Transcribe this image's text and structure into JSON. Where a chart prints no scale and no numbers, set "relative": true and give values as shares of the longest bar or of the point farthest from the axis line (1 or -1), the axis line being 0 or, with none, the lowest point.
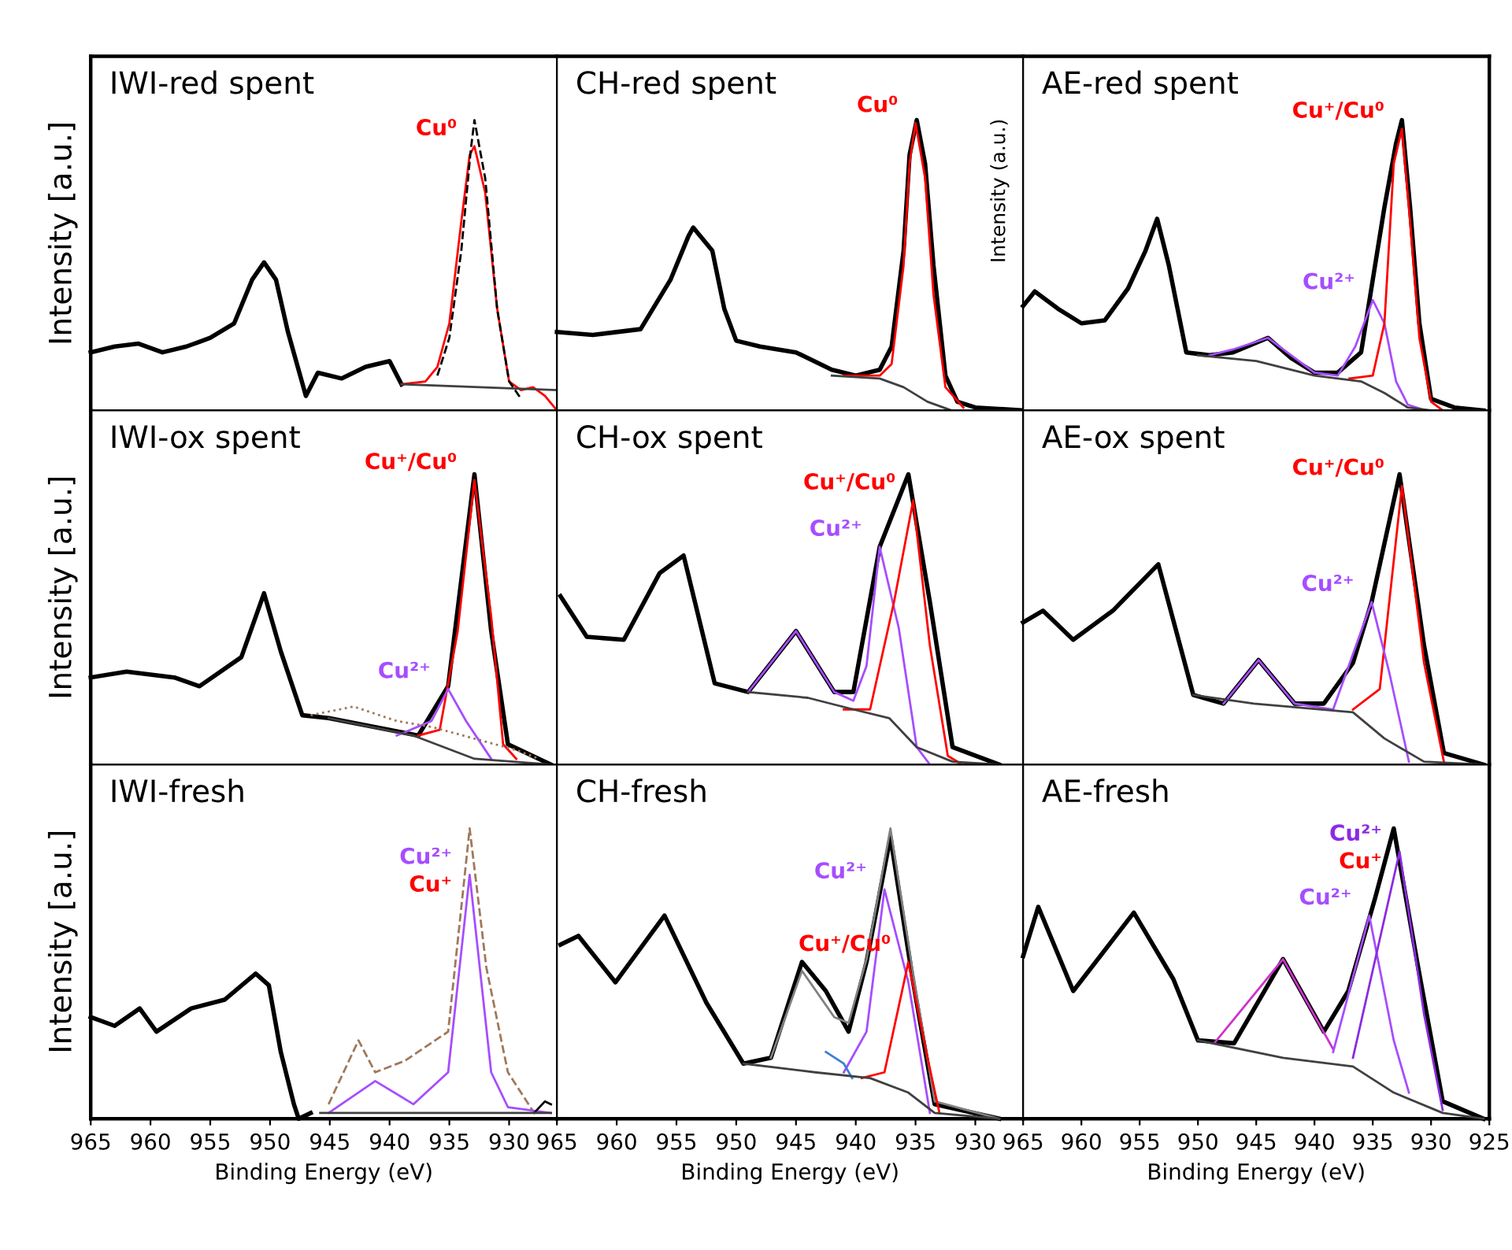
{
  "chart_data": [
    {
      "type": "line",
      "title": "IWI-red spent",
      "ylabel": "Intensity [a.u.]",
      "relative": true,
      "xlim": [
        965,
        926
      ],
      "xticks": [
        965,
        960,
        955,
        950,
        945,
        940,
        935,
        930
      ],
      "tick_labels": false,
      "series": [
        {
          "color": "#000000",
          "x": [
            965,
            963,
            961,
            959,
            957,
            955,
            953,
            951.5,
            950.5,
            949.5,
            948.5,
            947,
            946,
            944,
            942,
            940,
            939
          ],
          "values": [
            0.2,
            0.22,
            0.23,
            0.2,
            0.22,
            0.25,
            0.3,
            0.45,
            0.51,
            0.45,
            0.27,
            0.05,
            0.13,
            0.11,
            0.15,
            0.17,
            0.09
          ]
        },
        {
          "name": "Cu⁰",
          "color": "#ff0000",
          "x": [
            939,
            937,
            936,
            935,
            934,
            933.3,
            932.9,
            932,
            931,
            930,
            929,
            928,
            927,
            926
          ],
          "values": [
            0.09,
            0.1,
            0.15,
            0.3,
            0.65,
            0.88,
            0.91,
            0.75,
            0.35,
            0.1,
            0.07,
            0.08,
            0.05,
            0
          ]
        },
        {
          "color": "#000000",
          "line_style": "dashed",
          "x": [
            936,
            935,
            934,
            933.2,
            932.9,
            932,
            931,
            930,
            929
          ],
          "values": [
            0.12,
            0.25,
            0.55,
            0.9,
            1.0,
            0.8,
            0.35,
            0.1,
            0.04
          ]
        },
        {
          "color": "#404040",
          "x": [
            939,
            926
          ],
          "values": [
            0.09,
            0.07
          ]
        }
      ]
    },
    {
      "type": "line",
      "title": "CH-red spent",
      "relative": true,
      "xlim": [
        965,
        926
      ],
      "xticks": [
        965,
        960,
        955,
        950,
        945,
        940,
        935,
        930
      ],
      "tick_labels": false,
      "series": [
        {
          "color": "#000000",
          "x": [
            965,
            962,
            958,
            955.5,
            954,
            953.6,
            952,
            951,
            950,
            948,
            945,
            942,
            940,
            938,
            937,
            936,
            935.5,
            934.9,
            934.2,
            933.5,
            932.5,
            931.5,
            930,
            926
          ],
          "values": [
            0.27,
            0.26,
            0.28,
            0.45,
            0.6,
            0.63,
            0.55,
            0.35,
            0.24,
            0.22,
            0.2,
            0.14,
            0.12,
            0.14,
            0.22,
            0.55,
            0.88,
            1.0,
            0.85,
            0.5,
            0.12,
            0.03,
            0.01,
            0
          ]
        },
        {
          "name": "Cu⁰",
          "color": "#ff0000",
          "x": [
            941,
            938,
            937,
            936,
            935.5,
            935,
            934.2,
            933.5,
            932.5,
            931
          ],
          "values": [
            0.12,
            0.12,
            0.16,
            0.5,
            0.85,
            0.99,
            0.8,
            0.4,
            0.08,
            0.01
          ]
        },
        {
          "color": "#404040",
          "x": [
            942,
            938,
            936,
            934,
            932,
            926
          ],
          "values": [
            0.12,
            0.11,
            0.08,
            0.03,
            0,
            0
          ]
        }
      ]
    },
    {
      "type": "line",
      "title": "AE-red spent",
      "ylabel": "Intensity (a.u.)",
      "relative": true,
      "xlim": [
        965,
        925
      ],
      "xticks": [
        965,
        960,
        955,
        950,
        945,
        940,
        935,
        930,
        925
      ],
      "tick_labels": false,
      "series": [
        {
          "color": "#000000",
          "x": [
            965,
            964,
            962,
            960,
            958,
            956,
            954.5,
            953.5,
            952.5,
            951,
            949,
            947,
            944,
            942,
            940,
            938,
            936,
            935,
            934,
            933,
            932.5,
            931.8,
            931,
            930,
            928,
            925.5
          ],
          "values": [
            0.36,
            0.41,
            0.35,
            0.3,
            0.31,
            0.42,
            0.55,
            0.66,
            0.5,
            0.2,
            0.19,
            0.2,
            0.25,
            0.18,
            0.13,
            0.13,
            0.2,
            0.45,
            0.7,
            0.92,
            1.0,
            0.7,
            0.3,
            0.04,
            0.01,
            0
          ]
        },
        {
          "name": "Cu²⁺",
          "color": "#a64dff",
          "x": [
            949,
            947,
            944,
            942,
            940,
            938,
            936.5,
            935,
            934,
            933,
            932,
            930.5
          ],
          "values": [
            0.19,
            0.21,
            0.25,
            0.19,
            0.13,
            0.12,
            0.22,
            0.38,
            0.3,
            0.1,
            0.02,
            0
          ]
        },
        {
          "name": "Cu⁺/Cu⁰",
          "color": "#ff0000",
          "x": [
            937,
            935,
            934,
            933.2,
            932.5,
            931.8,
            931,
            930,
            929
          ],
          "values": [
            0.11,
            0.12,
            0.3,
            0.85,
            0.97,
            0.65,
            0.25,
            0.03,
            0
          ]
        },
        {
          "color": "#404040",
          "x": [
            950,
            945,
            940,
            936,
            934,
            932,
            930,
            925.5
          ],
          "values": [
            0.19,
            0.17,
            0.12,
            0.1,
            0.06,
            0.01,
            0,
            0
          ]
        }
      ]
    },
    {
      "type": "line",
      "title": "IWI-ox spent",
      "ylabel": "Intensity [a.u.]",
      "relative": true,
      "xlim": [
        965,
        926
      ],
      "xticks": [
        965,
        960,
        955,
        950,
        945,
        940,
        935,
        930
      ],
      "tick_labels": false,
      "series": [
        {
          "color": "#000000",
          "x": [
            965,
            962,
            958,
            955.9,
            952.4,
            950.5,
            949.1,
            947.3,
            945.1,
            940.1,
            937.6,
            935.1,
            932.9,
            931.5,
            930.1,
            926.5
          ],
          "values": [
            0.3,
            0.32,
            0.3,
            0.27,
            0.37,
            0.59,
            0.39,
            0.17,
            0.16,
            0.12,
            0.1,
            0.27,
            1.0,
            0.46,
            0.07,
            0
          ]
        },
        {
          "name": "Cu⁺/Cu⁰",
          "color": "#ff0000",
          "x": [
            937.6,
            935.8,
            934.3,
            932.9,
            931.5,
            930.5,
            929.4
          ],
          "values": [
            0.1,
            0.12,
            0.46,
            0.98,
            0.51,
            0.07,
            0.02
          ]
        },
        {
          "name": "Cu²⁺",
          "color": "#a64dff",
          "x": [
            939.4,
            936.5,
            935.1,
            933.6,
            931.5
          ],
          "values": [
            0.1,
            0.15,
            0.26,
            0.15,
            0.02
          ]
        },
        {
          "color": "#a0785a",
          "line_style": "dotted",
          "x": [
            946.6,
            943,
            939.4,
            936.5,
            929.4,
            927.5
          ],
          "values": [
            0.17,
            0.2,
            0.15,
            0.13,
            0.05,
            0.02
          ]
        },
        {
          "color": "#404040",
          "x": [
            945.1,
            938,
            932.9,
            926.5
          ],
          "values": [
            0.16,
            0.1,
            0.02,
            0
          ]
        }
      ]
    },
    {
      "type": "line",
      "title": "CH-ox spent",
      "relative": true,
      "xlim": [
        965,
        926
      ],
      "xticks": [
        965,
        960,
        955,
        950,
        945,
        940,
        935,
        930
      ],
      "tick_labels": false,
      "series": [
        {
          "color": "#000000",
          "x": [
            964.7,
            962.5,
            959.4,
            956.4,
            954.4,
            951.8,
            949,
            945,
            941.8,
            940.2,
            938,
            935.6,
            933.8,
            931.9,
            928
          ],
          "values": [
            0.58,
            0.44,
            0.43,
            0.66,
            0.72,
            0.28,
            0.25,
            0.46,
            0.25,
            0.25,
            0.75,
            1.0,
            0.56,
            0.06,
            0
          ]
        },
        {
          "name": "Cu²⁺",
          "color": "#a64dff",
          "x": [
            949,
            945,
            941.8,
            940.2,
            939.1,
            938,
            936.4,
            934.9,
            933.8
          ],
          "values": [
            0.25,
            0.46,
            0.25,
            0.22,
            0.34,
            0.75,
            0.47,
            0.06,
            0
          ]
        },
        {
          "name": "Cu⁺/Cu⁰",
          "color": "#ff0000",
          "x": [
            941,
            938.8,
            936.8,
            935.2,
            933.8,
            932.3,
            931.1
          ],
          "values": [
            0.19,
            0.19,
            0.56,
            0.91,
            0.41,
            0.03,
            0
          ]
        },
        {
          "color": "#404040",
          "x": [
            949,
            944,
            940.2,
            937.2,
            934.9,
            931.9,
            928
          ],
          "values": [
            0.25,
            0.23,
            0.19,
            0.16,
            0.06,
            0.01,
            0
          ]
        }
      ]
    },
    {
      "type": "line",
      "title": "AE-ox spent",
      "relative": true,
      "xlim": [
        965,
        925
      ],
      "xticks": [
        965,
        960,
        955,
        950,
        945,
        940,
        935,
        930,
        925
      ],
      "tick_labels": false,
      "series": [
        {
          "color": "#000000",
          "x": [
            965,
            963.3,
            960.7,
            957.3,
            953.4,
            950.4,
            947.8,
            944.8,
            941.7,
            939.2,
            936.7,
            935.1,
            932.7,
            930.6,
            928.9,
            925.5
          ],
          "values": [
            0.49,
            0.53,
            0.43,
            0.53,
            0.69,
            0.24,
            0.21,
            0.36,
            0.21,
            0.21,
            0.35,
            0.56,
            1.0,
            0.41,
            0.04,
            0
          ]
        },
        {
          "name": "Cu⁺/Cu⁰",
          "color": "#ff0000",
          "x": [
            936.7,
            934.4,
            932.5,
            930.6,
            928.9
          ],
          "values": [
            0.19,
            0.26,
            0.96,
            0.35,
            0.01
          ]
        },
        {
          "name": "Cu²⁺",
          "color": "#a64dff",
          "x": [
            947.8,
            944.8,
            941.7,
            938.4,
            935.1,
            933.6,
            931.9
          ],
          "values": [
            0.21,
            0.36,
            0.21,
            0.19,
            0.56,
            0.32,
            0.01
          ]
        },
        {
          "color": "#404040",
          "x": [
            950.4,
            945.2,
            936.7,
            934,
            930.6,
            925.5
          ],
          "values": [
            0.24,
            0.21,
            0.18,
            0.09,
            0.01,
            0
          ]
        }
      ]
    },
    {
      "type": "line",
      "title": "IWI-fresh",
      "xlabel": "Binding Energy (eV)",
      "ylabel": "Intensity [a.u.]",
      "relative": true,
      "xlim": [
        965,
        926
      ],
      "xticks": [
        965,
        960,
        955,
        950,
        945,
        940,
        935,
        930
      ],
      "tick_labels": "x",
      "annotations": [
        {
          "text": "Cu⁺",
          "x": 933.3,
          "y": 0.84
        }
      ],
      "series": [
        {
          "color": "#000000",
          "x": [
            965,
            963,
            960.9,
            959.5,
            956.6,
            953.8,
            951.2,
            950.1,
            949.1,
            948,
            947.6,
            946.6
          ],
          "values": [
            0.35,
            0.32,
            0.38,
            0.3,
            0.38,
            0.41,
            0.5,
            0.46,
            0.23,
            0.05,
            0,
            0.02
          ]
        },
        {
          "color": "#a0785a",
          "line_style": "dashed",
          "x": [
            945.1,
            942.6,
            941.2,
            938.7,
            935.1,
            933.3,
            931.9,
            930.1,
            927.9
          ],
          "values": [
            0.05,
            0.27,
            0.16,
            0.2,
            0.3,
            1.0,
            0.52,
            0.16,
            0.02
          ]
        },
        {
          "name": "Cu²⁺",
          "color": "#a64dff",
          "x": [
            945.1,
            941.2,
            938,
            935.1,
            933.3,
            931.5,
            930.1,
            926.5
          ],
          "values": [
            0.02,
            0.13,
            0.05,
            0.16,
            0.84,
            0.16,
            0.04,
            0.02
          ]
        },
        {
          "color": "#000000",
          "x": [
            927.9,
            927,
            926.5
          ],
          "values": [
            0.02,
            0.06,
            0.05
          ]
        },
        {
          "color": "#404040",
          "x": [
            945.8,
            926.5
          ],
          "values": [
            0.02,
            0.02
          ]
        }
      ]
    },
    {
      "type": "line",
      "title": "CH-fresh",
      "xlabel": "Binding Energy (eV)",
      "relative": true,
      "xlim": [
        965,
        926
      ],
      "xticks": [
        965,
        960,
        955,
        950,
        945,
        940,
        935,
        930
      ],
      "tick_labels": "x",
      "series": [
        {
          "color": "#000000",
          "x": [
            964.7,
            963.2,
            960.1,
            956,
            952.5,
            949.4,
            947.1,
            944.5,
            942.5,
            940.6,
            939.1,
            937.1,
            935.2,
            933.4,
            928
          ],
          "values": [
            0.6,
            0.63,
            0.47,
            0.7,
            0.4,
            0.19,
            0.21,
            0.54,
            0.44,
            0.3,
            0.54,
            0.97,
            0.47,
            0.05,
            0
          ]
        },
        {
          "color": "#808080",
          "x": [
            947.1,
            944.5,
            941.8,
            940.6,
            939.1,
            937.1,
            935.2,
            933.4,
            928
          ],
          "values": [
            0.21,
            0.51,
            0.35,
            0.33,
            0.55,
            1.0,
            0.5,
            0.06,
            0
          ]
        },
        {
          "name": "Cu²⁺",
          "color": "#a64dff",
          "x": [
            941,
            939.1,
            937.6,
            935.6,
            933.8
          ],
          "values": [
            0.16,
            0.3,
            0.79,
            0.47,
            0.02
          ]
        },
        {
          "color": "#3a7fd5",
          "x": [
            942.5,
            941,
            940.3
          ],
          "values": [
            0.23,
            0.19,
            0.14
          ]
        },
        {
          "name": "Cu⁺/Cu⁰",
          "color": "#ff0000",
          "x": [
            939.5,
            937.6,
            935.6,
            934.1,
            933
          ],
          "values": [
            0.14,
            0.16,
            0.54,
            0.23,
            0.02
          ]
        },
        {
          "color": "#404040",
          "x": [
            949.4,
            943.4,
            938.8,
            935.6,
            933.4,
            928
          ],
          "values": [
            0.19,
            0.16,
            0.14,
            0.09,
            0.02,
            0
          ]
        }
      ]
    },
    {
      "type": "line",
      "title": "AE-fresh",
      "xlabel": "Binding Energy (eV)",
      "relative": true,
      "xlim": [
        965,
        925
      ],
      "xticks": [
        965,
        960,
        955,
        950,
        945,
        940,
        935,
        930,
        925
      ],
      "tick_labels": "x",
      "annotations": [
        {
          "text": "Cu⁺",
          "x": 932.7,
          "y": 0.92
        }
      ],
      "series": [
        {
          "color": "#000000",
          "x": [
            965,
            963.7,
            960.7,
            955.5,
            952.1,
            950,
            946.9,
            942.7,
            939.2,
            937.1,
            934.8,
            933.2,
            931.1,
            929,
            925.5
          ],
          "values": [
            0.56,
            0.73,
            0.44,
            0.71,
            0.48,
            0.27,
            0.26,
            0.55,
            0.3,
            0.44,
            0.76,
            1.0,
            0.52,
            0.06,
            0
          ]
        },
        {
          "color": "#cc33cc",
          "x": [
            948.6,
            942.7,
            938.4
          ],
          "values": [
            0.26,
            0.55,
            0.24
          ]
        },
        {
          "name": "Cu²⁺",
          "color": "#a64dff",
          "x": [
            938.4,
            935.3,
            933.2,
            931.9
          ],
          "values": [
            0.23,
            0.7,
            0.27,
            0.09
          ]
        },
        {
          "name": "Cu²⁺",
          "color": "#8a2be2",
          "x": [
            936.7,
            932.7,
            930.6,
            929
          ],
          "values": [
            0.21,
            0.92,
            0.36,
            0.03
          ]
        },
        {
          "color": "#404040",
          "x": [
            950,
            942.7,
            936.7,
            933.2,
            929,
            925.5
          ],
          "values": [
            0.27,
            0.21,
            0.18,
            0.09,
            0.02,
            0
          ]
        }
      ]
    }
  ]
}
